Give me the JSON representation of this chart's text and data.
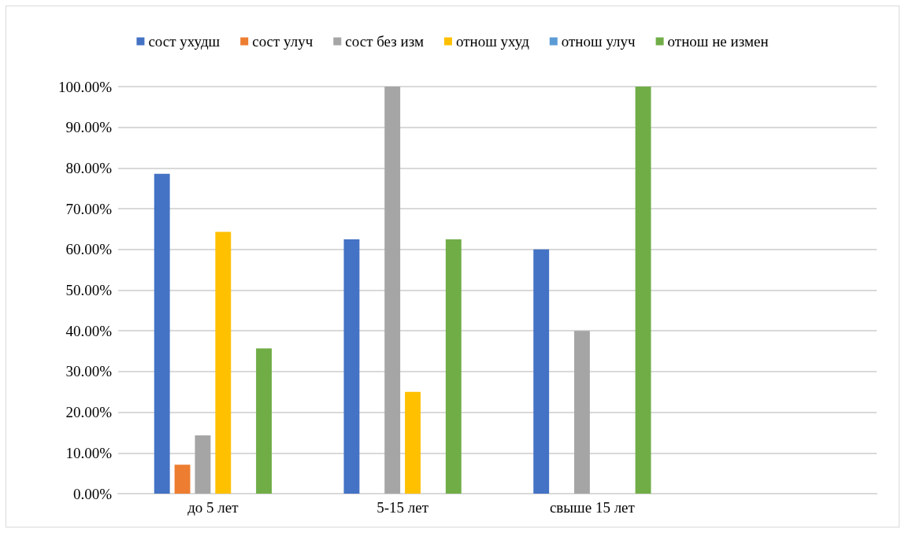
{
  "chart_data": {
    "type": "bar",
    "categories": [
      "до 5 лет",
      "5-15 лет",
      "свыше 15 лет",
      null
    ],
    "series": [
      {
        "name": "сост ухудш",
        "color": "#4472c4",
        "values": [
          78.6,
          62.5,
          60,
          null
        ]
      },
      {
        "name": "сост улуч",
        "color": "#ed7d31",
        "values": [
          7.1,
          0,
          0,
          null
        ]
      },
      {
        "name": "сост без изм",
        "color": "#a5a5a5",
        "values": [
          14.3,
          100,
          40,
          null
        ]
      },
      {
        "name": "отнош ухуд",
        "color": "#ffc000",
        "values": [
          64.3,
          25,
          0,
          null
        ]
      },
      {
        "name": "отнош улуч",
        "color": "#5b9bd5",
        "values": [
          0,
          0,
          0,
          null
        ]
      },
      {
        "name": "отнош не измен",
        "color": "#70ad47",
        "values": [
          35.7,
          62.5,
          100,
          null
        ]
      }
    ],
    "ylim": [
      0,
      100
    ],
    "yticks": [
      {
        "value": 0,
        "label": "0.00%"
      },
      {
        "value": 10,
        "label": "10.00%"
      },
      {
        "value": 20,
        "label": "20.00%"
      },
      {
        "value": 30,
        "label": "30.00%"
      },
      {
        "value": 40,
        "label": "40.00%"
      },
      {
        "value": 50,
        "label": "50.00%"
      },
      {
        "value": 60,
        "label": "60.00%"
      },
      {
        "value": 70,
        "label": "70.00%"
      },
      {
        "value": 80,
        "label": "80.00%"
      },
      {
        "value": 90,
        "label": "90.00%"
      },
      {
        "value": 100,
        "label": "100.00%"
      }
    ],
    "grid": "y",
    "legend": "top"
  }
}
